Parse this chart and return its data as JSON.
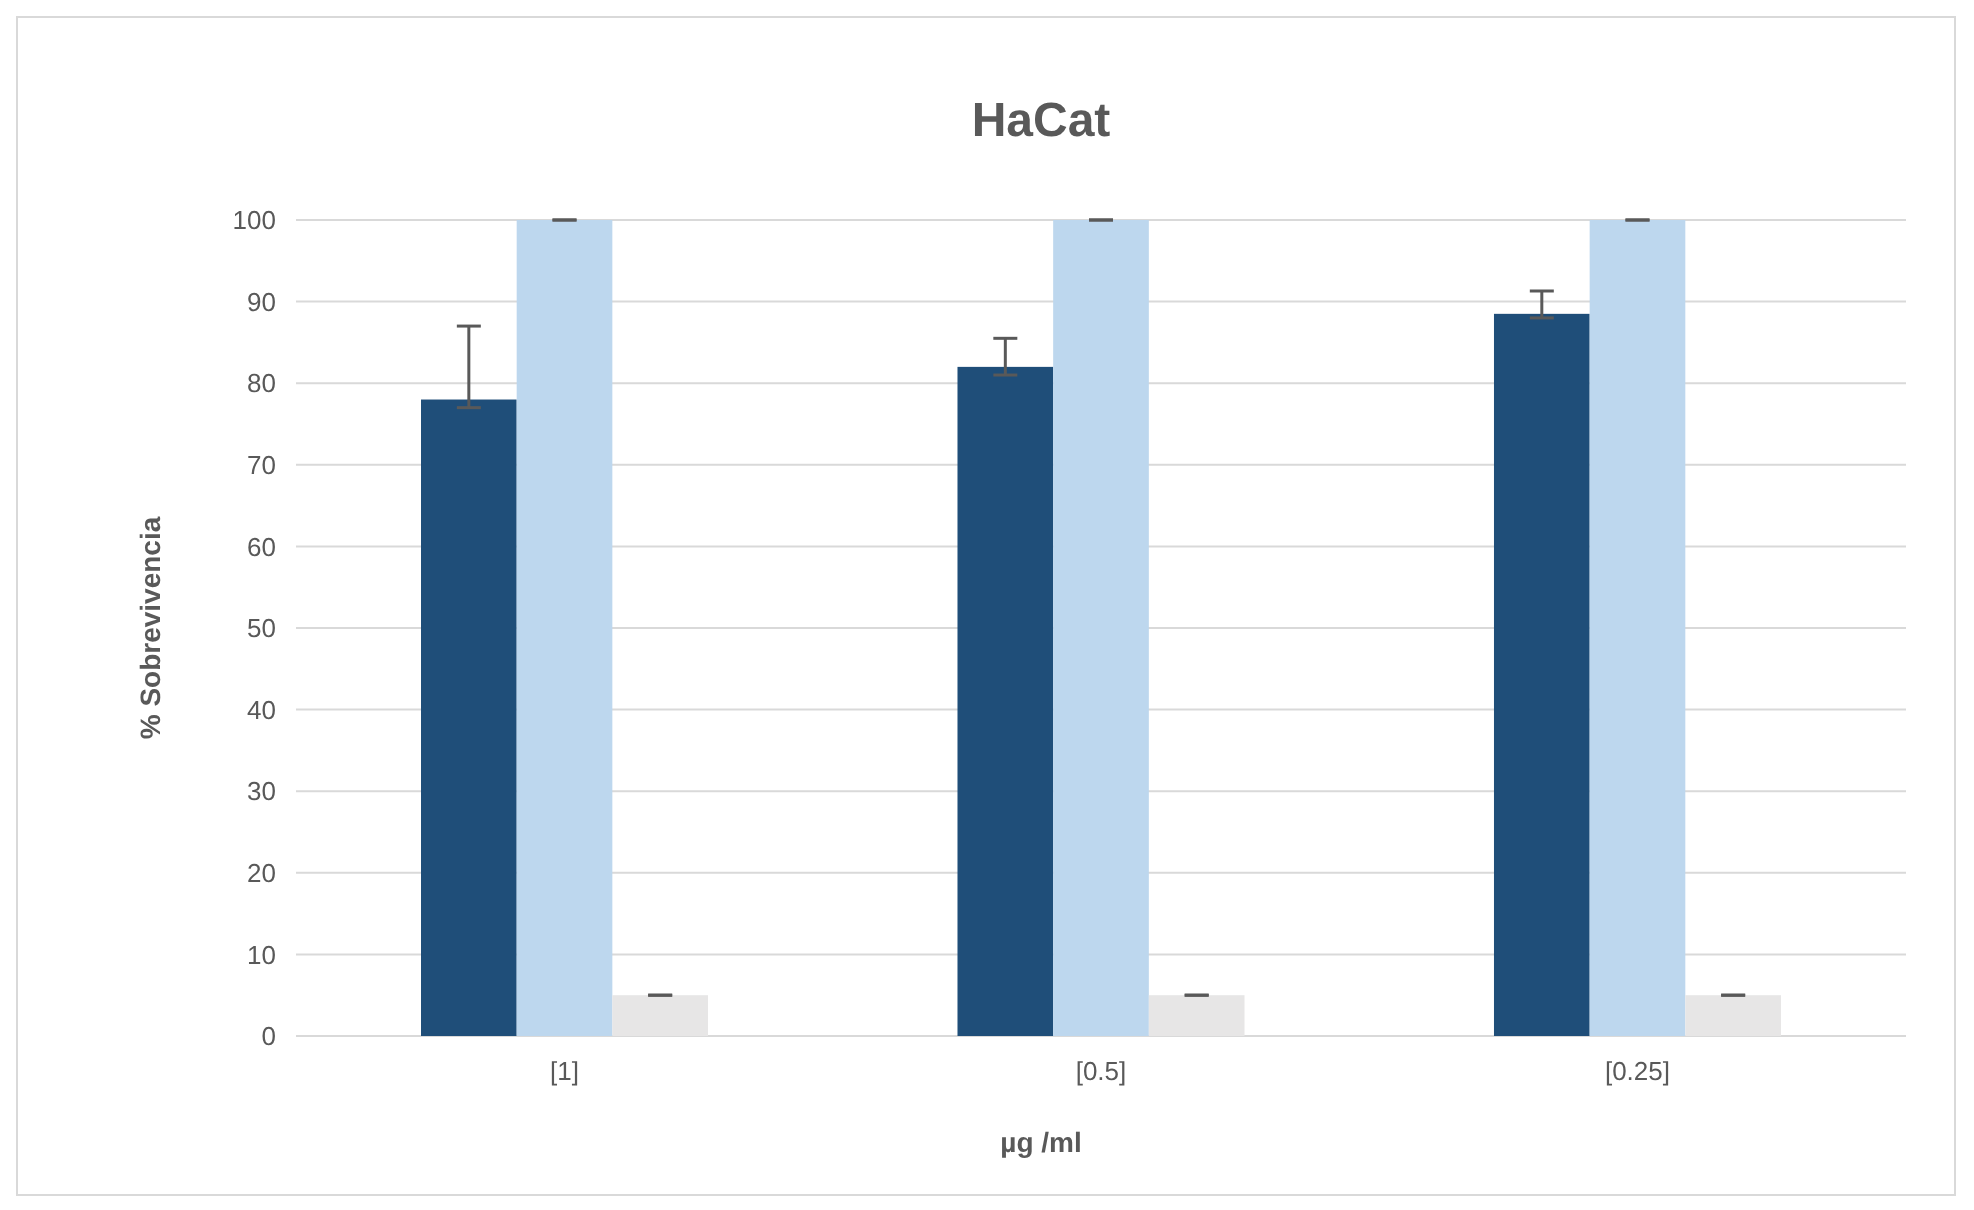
{
  "chart_data": {
    "type": "bar",
    "title": "HaCat",
    "xlabel": "µg /ml",
    "ylabel": "% Sobrevivencia",
    "categories": [
      "[1]",
      "[0.5]",
      "[0.25]"
    ],
    "series": [
      {
        "color": "#1f4e79",
        "values": [
          78,
          82,
          88.5
        ],
        "errors": [
          [
            77,
            87
          ],
          [
            81,
            85.5
          ],
          [
            88,
            91.3
          ]
        ]
      },
      {
        "color": "#bdd7ee",
        "values": [
          100,
          100,
          100
        ],
        "errors": [
          0,
          0,
          0
        ]
      },
      {
        "color": "#e7e6e6",
        "values": [
          5,
          5,
          5
        ],
        "errors": [
          0,
          0,
          0
        ]
      }
    ],
    "ylim": [
      0,
      100
    ],
    "yticks": [
      0,
      10,
      20,
      30,
      40,
      50,
      60,
      70,
      80,
      90,
      100
    ],
    "grid": "y"
  }
}
